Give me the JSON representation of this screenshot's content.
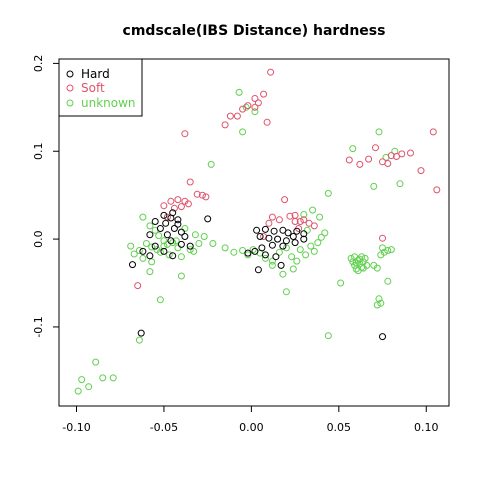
{
  "chart_data": {
    "type": "scatter",
    "title": "cmdscale(IBS Distance) hardness",
    "xlabel": "",
    "ylabel": "",
    "xlim": [
      -0.11,
      0.113
    ],
    "ylim": [
      -0.19,
      0.205
    ],
    "x_ticks": [
      -0.1,
      -0.05,
      0.0,
      0.05,
      0.1
    ],
    "x_tick_labels": [
      "-0.10",
      "-0.05",
      "0.00",
      "0.05",
      "0.10"
    ],
    "y_ticks": [
      -0.1,
      0.0,
      0.1,
      0.2
    ],
    "y_tick_labels": [
      "-0.1",
      "0.0",
      "0.1",
      "0.2"
    ],
    "grid": false,
    "legend": "top-left",
    "marker": "open-circle",
    "series": [
      {
        "name": "Hard",
        "color": "#000000",
        "points": [
          [
            -0.063,
            -0.107
          ],
          [
            0.075,
            -0.111
          ],
          [
            -0.068,
            -0.029
          ],
          [
            -0.025,
            0.023
          ],
          [
            -0.045,
            0.03
          ],
          [
            -0.05,
            0.027
          ],
          [
            -0.046,
            0.024
          ],
          [
            -0.055,
            0.02
          ],
          [
            -0.049,
            0.018
          ],
          [
            -0.042,
            0.022
          ],
          [
            -0.052,
            0.012
          ],
          [
            -0.044,
            0.012
          ],
          [
            -0.04,
            0.008
          ],
          [
            -0.048,
            0.005
          ],
          [
            -0.058,
            0.005
          ],
          [
            -0.046,
            -0.002
          ],
          [
            -0.04,
            -0.006
          ],
          [
            -0.035,
            -0.008
          ],
          [
            -0.055,
            -0.008
          ],
          [
            -0.05,
            -0.014
          ],
          [
            -0.062,
            -0.014
          ],
          [
            -0.058,
            -0.019
          ],
          [
            -0.045,
            -0.019
          ],
          [
            -0.042,
            0.017
          ],
          [
            -0.038,
            0.003
          ],
          [
            0.003,
            0.01
          ],
          [
            0.008,
            0.011
          ],
          [
            0.013,
            0.009
          ],
          [
            0.018,
            0.01
          ],
          [
            0.021,
            0.007
          ],
          [
            0.024,
            0.003
          ],
          [
            0.026,
            0.009
          ],
          [
            0.03,
            0.006
          ],
          [
            0.005,
            0.003
          ],
          [
            0.01,
            0.001
          ],
          [
            0.015,
            0.0
          ],
          [
            0.02,
            -0.002
          ],
          [
            0.025,
            -0.004
          ],
          [
            0.012,
            -0.007
          ],
          [
            0.018,
            -0.008
          ],
          [
            0.006,
            -0.01
          ],
          [
            0.002,
            -0.014
          ],
          [
            -0.002,
            -0.016
          ],
          [
            0.008,
            -0.018
          ],
          [
            0.014,
            -0.02
          ],
          [
            0.004,
            -0.035
          ],
          [
            0.017,
            -0.03
          ],
          [
            0.03,
            0.0
          ]
        ]
      },
      {
        "name": "Soft",
        "color": "#DF536B",
        "points": [
          [
            -0.038,
            0.12
          ],
          [
            -0.015,
            0.13
          ],
          [
            -0.012,
            0.14
          ],
          [
            -0.008,
            0.14
          ],
          [
            -0.005,
            0.148
          ],
          [
            -0.002,
            0.152
          ],
          [
            0.002,
            0.16
          ],
          [
            0.004,
            0.155
          ],
          [
            0.007,
            0.165
          ],
          [
            0.009,
            0.133
          ],
          [
            0.011,
            0.19
          ],
          [
            0.002,
            0.15
          ],
          [
            0.056,
            0.09
          ],
          [
            0.062,
            0.085
          ],
          [
            0.067,
            0.091
          ],
          [
            0.071,
            0.104
          ],
          [
            0.075,
            0.088
          ],
          [
            0.078,
            0.086
          ],
          [
            0.08,
            0.095
          ],
          [
            0.083,
            0.094
          ],
          [
            0.086,
            0.097
          ],
          [
            0.091,
            0.098
          ],
          [
            0.097,
            0.078
          ],
          [
            0.104,
            0.122
          ],
          [
            0.106,
            0.056
          ],
          [
            0.075,
            0.001
          ],
          [
            -0.05,
            0.038
          ],
          [
            -0.046,
            0.043
          ],
          [
            -0.042,
            0.045
          ],
          [
            -0.04,
            0.037
          ],
          [
            -0.038,
            0.043
          ],
          [
            -0.035,
            0.065
          ],
          [
            -0.031,
            0.051
          ],
          [
            -0.028,
            0.05
          ],
          [
            -0.026,
            0.048
          ],
          [
            -0.036,
            0.04
          ],
          [
            -0.044,
            0.035
          ],
          [
            -0.048,
            0.025
          ],
          [
            -0.065,
            -0.053
          ],
          [
            0.012,
            0.025
          ],
          [
            0.016,
            0.022
          ],
          [
            0.019,
            0.045
          ],
          [
            0.022,
            0.026
          ],
          [
            0.025,
            0.02
          ],
          [
            0.028,
            0.02
          ],
          [
            0.03,
            0.022
          ],
          [
            0.033,
            0.018
          ],
          [
            0.036,
            0.015
          ],
          [
            0.027,
            0.012
          ],
          [
            0.01,
            0.018
          ],
          [
            0.007,
            0.003
          ],
          [
            0.025,
            0.027
          ]
        ]
      },
      {
        "name": "unknown",
        "color": "#61D04F",
        "points": [
          [
            -0.099,
            -0.173
          ],
          [
            -0.097,
            -0.16
          ],
          [
            -0.093,
            -0.168
          ],
          [
            -0.089,
            -0.14
          ],
          [
            -0.085,
            -0.158
          ],
          [
            -0.079,
            -0.158
          ],
          [
            -0.064,
            -0.115
          ],
          [
            -0.052,
            -0.069
          ],
          [
            -0.007,
            0.167
          ],
          [
            -0.005,
            0.122
          ],
          [
            -0.003,
            0.15
          ],
          [
            0.002,
            0.145
          ],
          [
            -0.023,
            0.085
          ],
          [
            0.058,
            0.103
          ],
          [
            0.07,
            0.06
          ],
          [
            0.073,
            0.122
          ],
          [
            0.077,
            0.093
          ],
          [
            0.082,
            0.1
          ],
          [
            0.085,
            0.063
          ],
          [
            0.044,
            0.052
          ],
          [
            0.044,
            -0.11
          ],
          [
            0.02,
            -0.06
          ],
          [
            0.051,
            -0.05
          ],
          [
            -0.062,
            0.025
          ],
          [
            -0.058,
            0.015
          ],
          [
            -0.055,
            0.01
          ],
          [
            -0.053,
            0.004
          ],
          [
            -0.05,
            -0.002
          ],
          [
            -0.048,
            -0.006
          ],
          [
            -0.045,
            -0.004
          ],
          [
            -0.042,
            -0.01
          ],
          [
            -0.06,
            -0.005
          ],
          [
            -0.057,
            -0.009
          ],
          [
            -0.054,
            -0.012
          ],
          [
            -0.064,
            -0.013
          ],
          [
            -0.067,
            -0.017
          ],
          [
            -0.069,
            -0.008
          ],
          [
            -0.052,
            -0.015
          ],
          [
            -0.047,
            -0.018
          ],
          [
            -0.04,
            -0.02
          ],
          [
            -0.035,
            -0.012
          ],
          [
            -0.03,
            -0.005
          ],
          [
            -0.027,
            0.003
          ],
          [
            -0.033,
            -0.014
          ],
          [
            -0.04,
            -0.042
          ],
          [
            -0.058,
            -0.037
          ],
          [
            -0.062,
            -0.022
          ],
          [
            -0.057,
            -0.026
          ],
          [
            -0.05,
            -0.008
          ],
          [
            -0.043,
            -0.002
          ],
          [
            -0.038,
            0.012
          ],
          [
            -0.032,
            0.005
          ],
          [
            -0.022,
            -0.005
          ],
          [
            -0.015,
            -0.01
          ],
          [
            -0.01,
            -0.015
          ],
          [
            -0.005,
            -0.013
          ],
          [
            -0.002,
            -0.018
          ],
          [
            0.001,
            -0.012
          ],
          [
            0.005,
            -0.016
          ],
          [
            0.008,
            -0.022
          ],
          [
            0.012,
            -0.025
          ],
          [
            0.016,
            -0.015
          ],
          [
            0.02,
            -0.01
          ],
          [
            0.023,
            -0.02
          ],
          [
            0.026,
            -0.025
          ],
          [
            0.028,
            -0.012
          ],
          [
            0.031,
            -0.018
          ],
          [
            0.034,
            -0.008
          ],
          [
            0.036,
            -0.014
          ],
          [
            0.038,
            -0.004
          ],
          [
            0.04,
            0.002
          ],
          [
            0.042,
            0.007
          ],
          [
            0.032,
            0.01
          ],
          [
            0.035,
            0.033
          ],
          [
            0.03,
            0.028
          ],
          [
            0.039,
            0.025
          ],
          [
            0.018,
            -0.04
          ],
          [
            0.012,
            -0.03
          ],
          [
            0.024,
            -0.034
          ],
          [
            0.015,
            0.0
          ],
          [
            0.057,
            -0.022
          ],
          [
            0.058,
            -0.026
          ],
          [
            0.059,
            -0.03
          ],
          [
            0.06,
            -0.034
          ],
          [
            0.061,
            -0.024
          ],
          [
            0.062,
            -0.028
          ],
          [
            0.063,
            -0.032
          ],
          [
            0.064,
            -0.026
          ],
          [
            0.065,
            -0.022
          ],
          [
            0.066,
            -0.03
          ],
          [
            0.059,
            -0.02
          ],
          [
            0.061,
            -0.036
          ],
          [
            0.063,
            -0.02
          ],
          [
            0.06,
            -0.027
          ],
          [
            0.062,
            -0.023
          ],
          [
            0.064,
            -0.033
          ],
          [
            0.07,
            -0.03
          ],
          [
            0.072,
            -0.033
          ],
          [
            0.074,
            -0.018
          ],
          [
            0.076,
            -0.015
          ],
          [
            0.078,
            -0.013
          ],
          [
            0.08,
            -0.012
          ],
          [
            0.072,
            -0.075
          ],
          [
            0.073,
            -0.068
          ],
          [
            0.074,
            -0.073
          ],
          [
            0.078,
            -0.048
          ],
          [
            0.075,
            -0.01
          ]
        ]
      }
    ]
  }
}
